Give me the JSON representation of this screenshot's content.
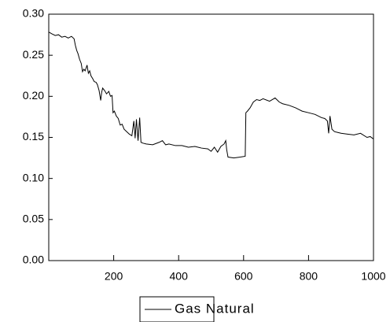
{
  "chart_data": {
    "type": "line",
    "series": [
      {
        "name": "Gas Natural",
        "color": "#000000",
        "x": [
          1,
          10,
          20,
          30,
          40,
          50,
          60,
          70,
          78,
          82,
          86,
          90,
          95,
          100,
          104,
          108,
          112,
          118,
          122,
          126,
          130,
          136,
          140,
          146,
          150,
          155,
          160,
          163,
          166,
          172,
          178,
          185,
          190,
          195,
          198,
          202,
          208,
          214,
          220,
          226,
          232,
          240,
          248,
          256,
          262,
          266,
          270,
          275,
          280,
          284,
          290,
          300,
          320,
          340,
          350,
          360,
          370,
          390,
          410,
          430,
          450,
          470,
          490,
          500,
          510,
          520,
          530,
          540,
          545,
          548,
          552,
          570,
          590,
          605,
          607,
          612,
          620,
          630,
          640,
          650,
          660,
          680,
          697,
          710,
          720,
          740,
          760,
          780,
          800,
          820,
          840,
          850,
          858,
          862,
          866,
          872,
          880,
          890,
          900,
          920,
          940,
          960,
          980,
          990,
          1000
        ],
        "values": [
          0.278,
          0.276,
          0.274,
          0.275,
          0.272,
          0.273,
          0.271,
          0.273,
          0.27,
          0.262,
          0.256,
          0.252,
          0.245,
          0.24,
          0.23,
          0.233,
          0.231,
          0.238,
          0.228,
          0.231,
          0.225,
          0.221,
          0.218,
          0.217,
          0.214,
          0.207,
          0.195,
          0.205,
          0.21,
          0.207,
          0.203,
          0.206,
          0.2,
          0.201,
          0.18,
          0.182,
          0.176,
          0.173,
          0.165,
          0.166,
          0.16,
          0.157,
          0.154,
          0.152,
          0.17,
          0.149,
          0.172,
          0.146,
          0.174,
          0.144,
          0.143,
          0.142,
          0.141,
          0.144,
          0.146,
          0.141,
          0.142,
          0.14,
          0.14,
          0.138,
          0.139,
          0.137,
          0.136,
          0.133,
          0.138,
          0.132,
          0.139,
          0.142,
          0.146,
          0.135,
          0.126,
          0.125,
          0.126,
          0.127,
          0.18,
          0.182,
          0.186,
          0.193,
          0.196,
          0.195,
          0.197,
          0.194,
          0.198,
          0.193,
          0.191,
          0.189,
          0.186,
          0.182,
          0.18,
          0.178,
          0.174,
          0.173,
          0.17,
          0.155,
          0.176,
          0.16,
          0.157,
          0.156,
          0.155,
          0.154,
          0.153,
          0.155,
          0.15,
          0.151,
          0.148
        ]
      }
    ],
    "xlim": [
      0,
      1000
    ],
    "xticks": [
      200,
      400,
      600,
      800,
      1000
    ],
    "ylim": [
      0,
      0.3
    ],
    "yticks": [
      {
        "value": 0,
        "label": "0.00"
      },
      {
        "value": 0.05,
        "label": "0.05"
      },
      {
        "value": 0.1,
        "label": "0.10"
      },
      {
        "value": 0.15,
        "label": "0.15"
      },
      {
        "value": 0.2,
        "label": "0.20"
      },
      {
        "value": 0.25,
        "label": "0.25"
      },
      {
        "value": 0.3,
        "label": "0.30"
      }
    ],
    "grid": false,
    "legend": "bottom"
  }
}
